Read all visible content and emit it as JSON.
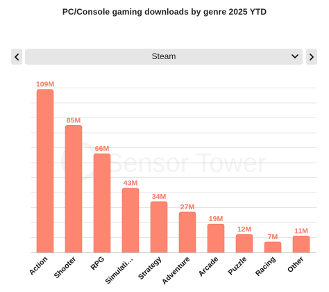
{
  "title": "PC/Console gaming downloads by genre 2025 YTD",
  "selector": {
    "value": "Steam"
  },
  "watermark": "Sensor Tower",
  "colors": {
    "bar": "#fd8670",
    "bar_stroke": "#e8735e",
    "label": "#f47a62",
    "grid": "#e4e4e4",
    "control_bg": "#e6e6e6"
  },
  "icons": {
    "prev": "chevron-left-icon",
    "next": "chevron-right-icon",
    "dropdown": "chevron-down-icon"
  },
  "chart_data": {
    "type": "bar",
    "title": "PC/Console gaming downloads by genre 2025 YTD",
    "xlabel": "",
    "ylabel": "",
    "categories": [
      "Action",
      "Shooter",
      "RPG",
      "Simulati…",
      "Strategy",
      "Adventure",
      "Arcade",
      "Puzzle",
      "Racing",
      "Other"
    ],
    "values": [
      109,
      85,
      66,
      43,
      34,
      27,
      19,
      12,
      7,
      11
    ],
    "data_labels": [
      "109M",
      "85M",
      "66M",
      "43M",
      "34M",
      "27M",
      "19M",
      "12M",
      "7M",
      "11M"
    ],
    "unit": "M",
    "ylim": [
      0,
      110
    ],
    "grid": true,
    "legend": "none"
  }
}
